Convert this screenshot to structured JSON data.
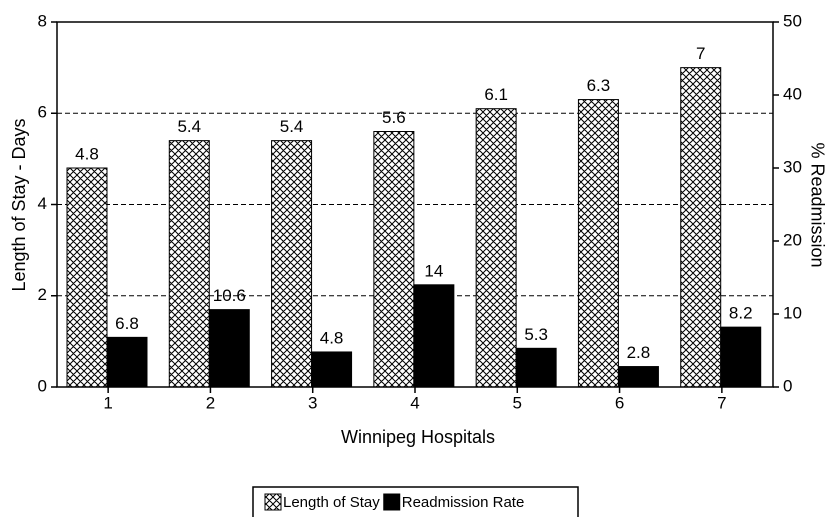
{
  "chart_data": {
    "type": "bar",
    "categories": [
      "1",
      "2",
      "3",
      "4",
      "5",
      "6",
      "7"
    ],
    "series": [
      {
        "name": "Length of Stay",
        "color": "#000000",
        "pattern": "crosshatch",
        "values": [
          4.8,
          5.4,
          5.4,
          5.6,
          6.1,
          6.3,
          7
        ]
      },
      {
        "name": "Readmission Rate",
        "color": "#000000",
        "axis": "y2",
        "values": [
          6.8,
          10.6,
          4.8,
          14,
          5.3,
          2.8,
          8.2
        ]
      }
    ],
    "x_label": "Winnipeg Hospitals",
    "y_label": "Length of Stay - Days",
    "y2_label": "% Readmission",
    "ylim": [
      0,
      8
    ],
    "yticks": [
      0,
      2,
      4,
      6,
      8
    ],
    "y2lim": [
      0,
      50
    ],
    "y2ticks": [
      0,
      10,
      20,
      30,
      40,
      50
    ],
    "grid": true,
    "legend": "bottom"
  }
}
